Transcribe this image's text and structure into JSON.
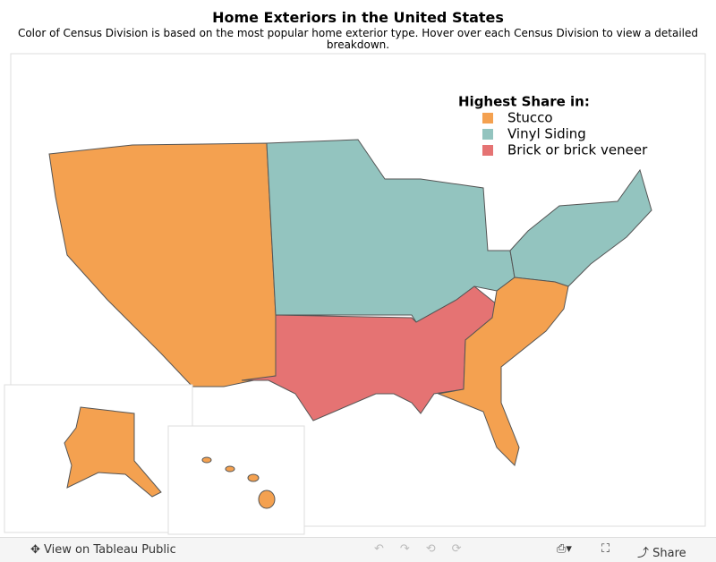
{
  "header": {
    "title": "Home Exteriors in the United States",
    "subtitle": "Color of Census Division is based on the most popular home exterior type. Hover over each Census Division to view a detailed breakdown."
  },
  "legend": {
    "title": "Highest Share in:",
    "items": [
      {
        "label": "Stucco",
        "color": "#f4a150"
      },
      {
        "label": "Vinyl Siding",
        "color": "#93c4bf"
      },
      {
        "label": "Brick or brick veneer",
        "color": "#e57373"
      }
    ]
  },
  "toolbar": {
    "view": "View on Tableau Public",
    "share": "Share"
  }
}
